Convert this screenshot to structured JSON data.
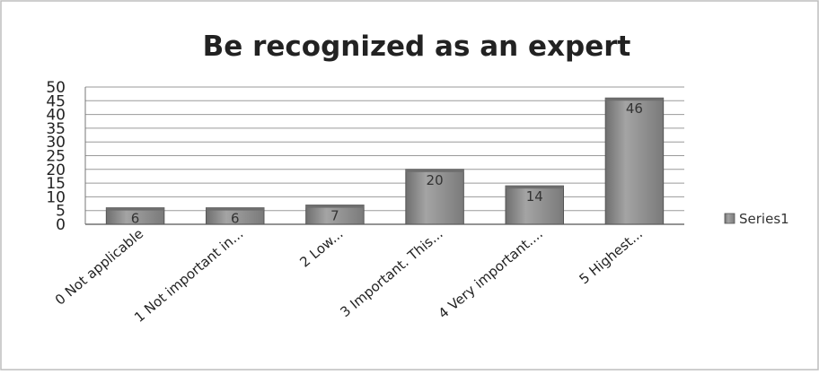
{
  "chart_data": {
    "type": "bar",
    "title": "Be recognized as an expert",
    "categories": [
      "0 Not applicable",
      "1 Not important in...",
      "2 Low...",
      "3 Important. This...",
      "4 Very important....",
      "5 Highest..."
    ],
    "series": [
      {
        "name": "Series1",
        "values": [
          6,
          6,
          7,
          20,
          14,
          46
        ]
      }
    ],
    "ylim": [
      0,
      50
    ],
    "yticks": [
      "50",
      "45",
      "40",
      "35",
      "30",
      "25",
      "20",
      "15",
      "10",
      "5",
      "0"
    ],
    "grid": true,
    "legend_position": "right",
    "colors": {
      "bar": "#8a8a8a",
      "bar_top": "#6e6e6e",
      "grid": "#9a9a9a",
      "text": "#222222"
    }
  }
}
